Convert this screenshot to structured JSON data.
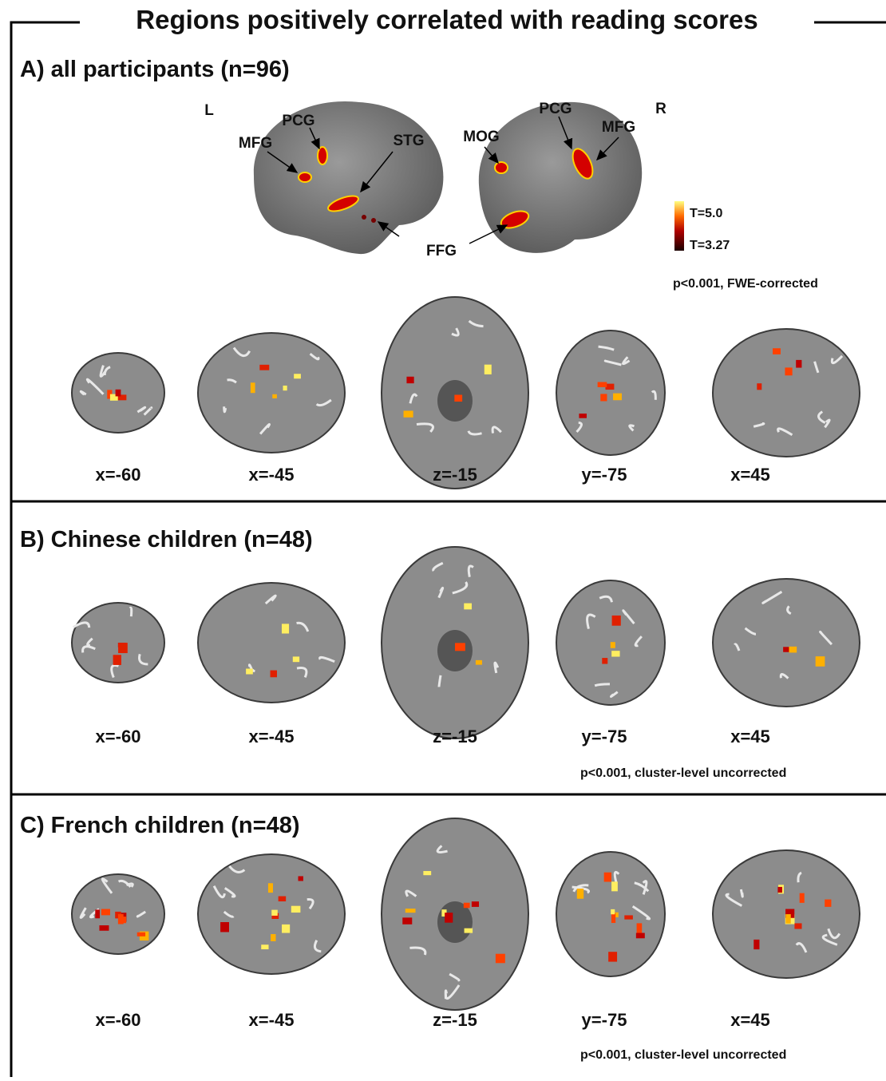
{
  "title": "Regions positively correlated with reading scores",
  "panels": [
    {
      "heading": "A) all participants (n=96)",
      "hemisphere_labels": [
        "L",
        "R"
      ],
      "region_labels": [
        "MFG",
        "PCG",
        "STG",
        "FFG",
        "MOG",
        "PCG",
        "MFG"
      ],
      "colorbar_labels": [
        "T=5.0",
        "T=3.27"
      ],
      "note": "p<0.001, FWE-corrected",
      "slices": [
        "x=-60",
        "x=-45",
        "z=-15",
        "y=-75",
        "x=45"
      ]
    },
    {
      "heading": "B) Chinese children (n=48)",
      "slices": [
        "x=-60",
        "x=-45",
        "z=-15",
        "y=-75",
        "x=45"
      ],
      "note": "p<0.001, cluster-level uncorrected"
    },
    {
      "heading": "C) French children (n=48)",
      "slices": [
        "x=-60",
        "x=-45",
        "z=-15",
        "y=-75",
        "x=45"
      ],
      "note": "p<0.001, cluster-level uncorrected"
    }
  ]
}
